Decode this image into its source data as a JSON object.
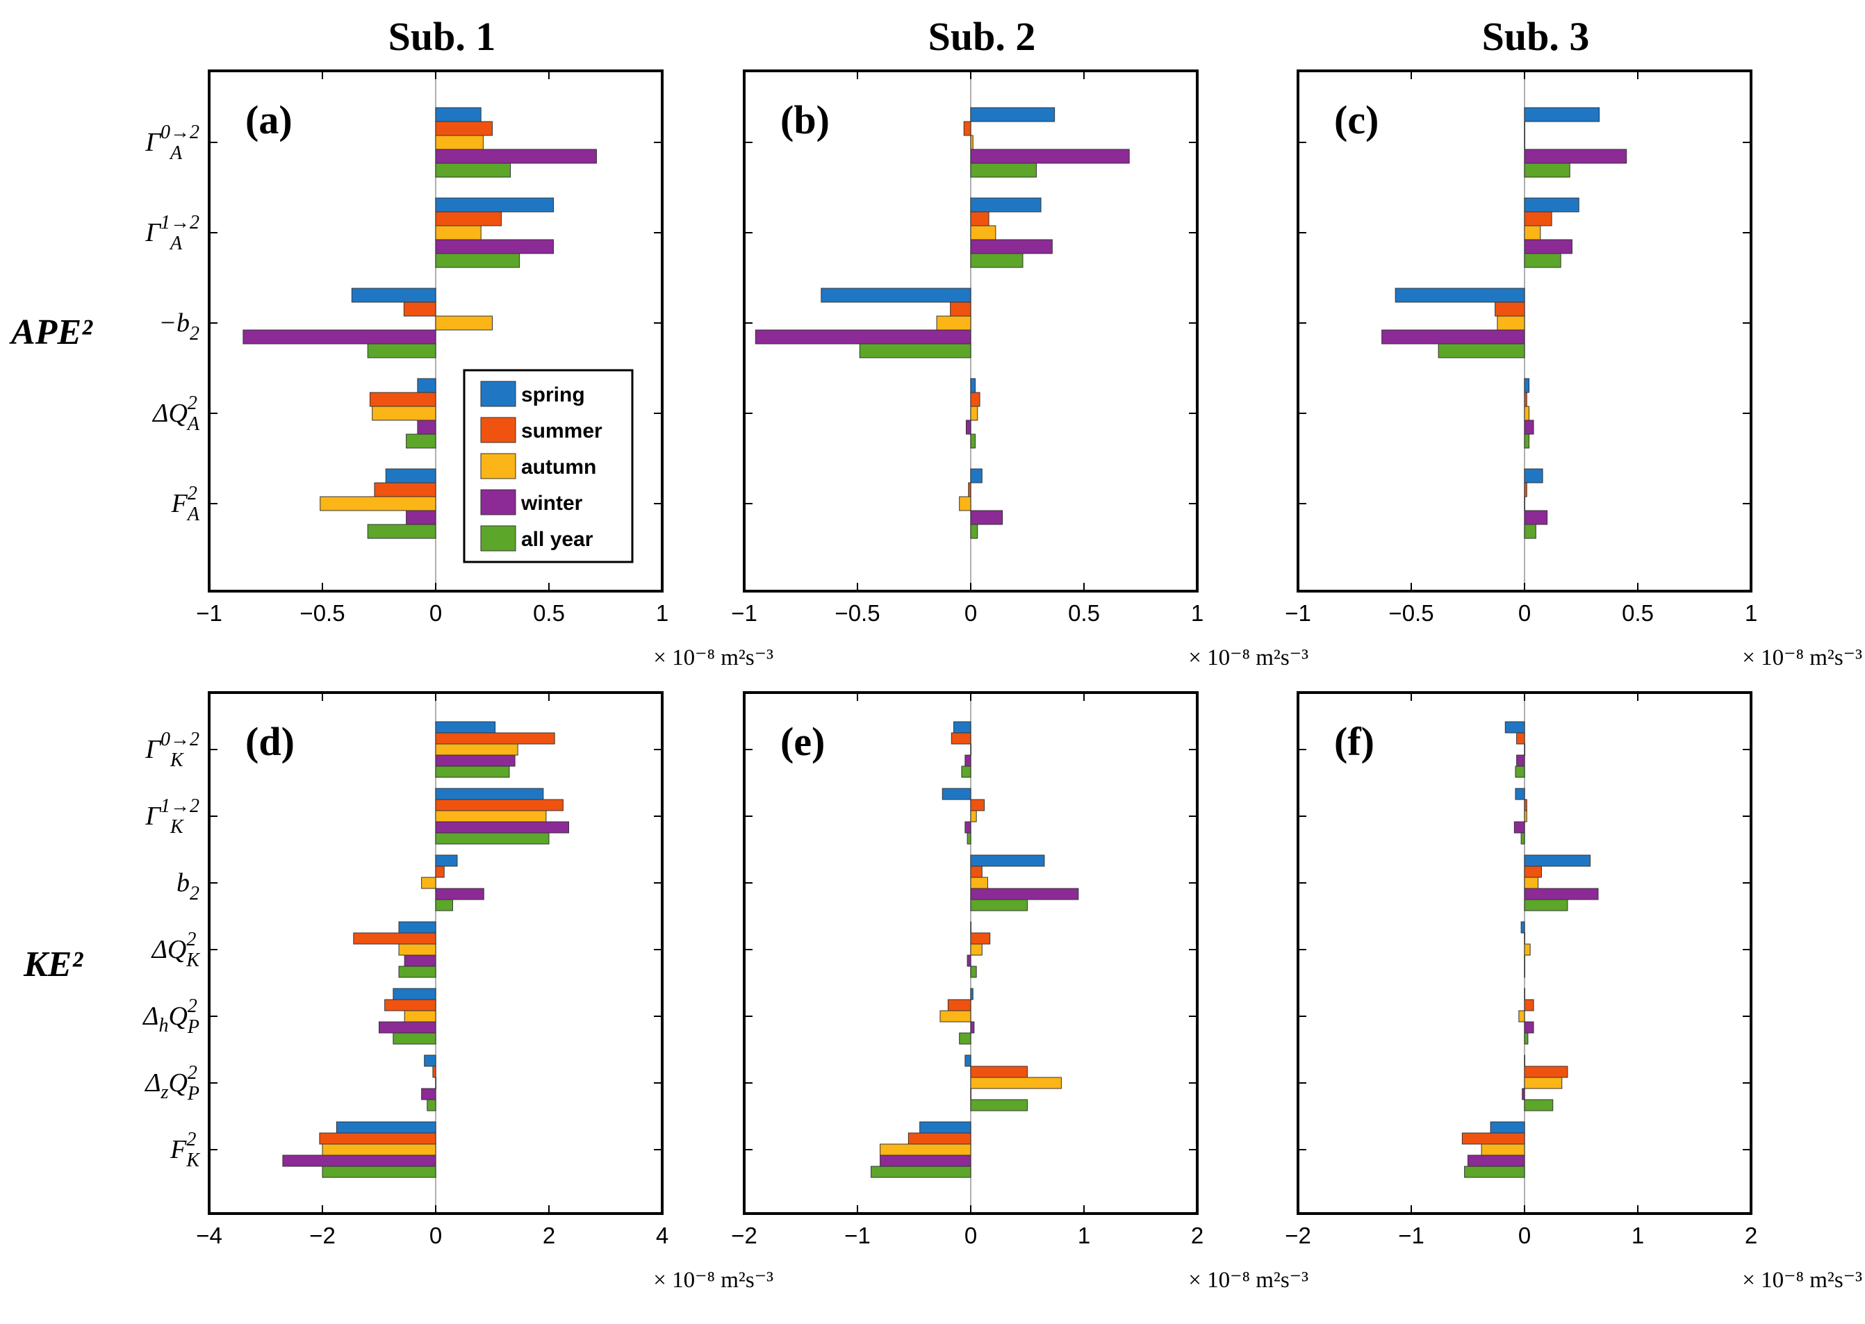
{
  "figure": {
    "column_titles": [
      "Sub. 1",
      "Sub. 2",
      "Sub. 3"
    ],
    "group_labels": {
      "ape": "APE²",
      "ke": "KE²"
    },
    "unit_label": "× 10⁻⁸ m²s⁻³"
  },
  "legend": {
    "items": [
      {
        "name": "spring",
        "color": "#1f77c4"
      },
      {
        "name": "summer",
        "color": "#f0530f"
      },
      {
        "name": "autumn",
        "color": "#fbb516"
      },
      {
        "name": "winter",
        "color": "#8c2a96"
      },
      {
        "name": "all year",
        "color": "#5ca62a"
      }
    ]
  },
  "chart_data": [
    {
      "type": "bar",
      "orientation": "horizontal",
      "panel_label": "(a)",
      "column_title": "Sub. 1",
      "categories": [
        {
          "base": "Γ",
          "sub": "A",
          "sup": "0→2"
        },
        {
          "base": "Γ",
          "sub": "A",
          "sup": "1→2"
        },
        {
          "base": "−b",
          "sub": "2",
          "sup": ""
        },
        {
          "base": "ΔQ",
          "sub": "A",
          "sup": "2"
        },
        {
          "base": "F",
          "sub": "A",
          "sup": "2"
        }
      ],
      "xlim": [
        -1,
        1
      ],
      "xticks": [
        -1,
        -0.5,
        0,
        0.5,
        1
      ],
      "xtick_labels": [
        "−1",
        "−0.5",
        "0",
        "0.5",
        "1"
      ],
      "xlabel": "× 10⁻⁸ m²s⁻³",
      "series": [
        {
          "name": "spring",
          "values": [
            0.2,
            0.52,
            -0.37,
            -0.08,
            -0.22
          ]
        },
        {
          "name": "summer",
          "values": [
            0.25,
            0.29,
            -0.14,
            -0.29,
            -0.27
          ]
        },
        {
          "name": "autumn",
          "values": [
            0.21,
            0.2,
            0.25,
            -0.28,
            -0.51
          ]
        },
        {
          "name": "winter",
          "values": [
            0.71,
            0.52,
            -0.85,
            -0.08,
            -0.13
          ]
        },
        {
          "name": "all year",
          "values": [
            0.33,
            0.37,
            -0.3,
            -0.13,
            -0.3
          ]
        }
      ]
    },
    {
      "type": "bar",
      "orientation": "horizontal",
      "panel_label": "(b)",
      "column_title": "Sub. 2",
      "categories": [
        {
          "base": "Γ",
          "sub": "A",
          "sup": "0→2"
        },
        {
          "base": "Γ",
          "sub": "A",
          "sup": "1→2"
        },
        {
          "base": "−b",
          "sub": "2",
          "sup": ""
        },
        {
          "base": "ΔQ",
          "sub": "A",
          "sup": "2"
        },
        {
          "base": "F",
          "sub": "A",
          "sup": "2"
        }
      ],
      "xlim": [
        -1,
        1
      ],
      "xticks": [
        -1,
        -0.5,
        0,
        0.5,
        1
      ],
      "xtick_labels": [
        "−1",
        "−0.5",
        "0",
        "0.5",
        "1"
      ],
      "xlabel": "× 10⁻⁸ m²s⁻³",
      "series": [
        {
          "name": "spring",
          "values": [
            0.37,
            0.31,
            -0.66,
            0.02,
            0.05
          ]
        },
        {
          "name": "summer",
          "values": [
            -0.03,
            0.08,
            -0.09,
            0.04,
            -0.01
          ]
        },
        {
          "name": "autumn",
          "values": [
            0.01,
            0.11,
            -0.15,
            0.03,
            -0.05
          ]
        },
        {
          "name": "winter",
          "values": [
            0.7,
            0.36,
            -0.95,
            -0.02,
            0.14
          ]
        },
        {
          "name": "all year",
          "values": [
            0.29,
            0.23,
            -0.49,
            0.02,
            0.03
          ]
        }
      ]
    },
    {
      "type": "bar",
      "orientation": "horizontal",
      "panel_label": "(c)",
      "column_title": "Sub. 3",
      "categories": [
        {
          "base": "Γ",
          "sub": "A",
          "sup": "0→2"
        },
        {
          "base": "Γ",
          "sub": "A",
          "sup": "1→2"
        },
        {
          "base": "−b",
          "sub": "2",
          "sup": ""
        },
        {
          "base": "ΔQ",
          "sub": "A",
          "sup": "2"
        },
        {
          "base": "F",
          "sub": "A",
          "sup": "2"
        }
      ],
      "xlim": [
        -1,
        1
      ],
      "xticks": [
        -1,
        -0.5,
        0,
        0.5,
        1
      ],
      "xtick_labels": [
        "−1",
        "−0.5",
        "0",
        "0.5",
        "1"
      ],
      "xlabel": "× 10⁻⁸ m²s⁻³",
      "series": [
        {
          "name": "spring",
          "values": [
            0.33,
            0.24,
            -0.57,
            0.02,
            0.08
          ]
        },
        {
          "name": "summer",
          "values": [
            0.0,
            0.12,
            -0.13,
            0.01,
            0.01
          ]
        },
        {
          "name": "autumn",
          "values": [
            0.0,
            0.07,
            -0.12,
            0.02,
            0.0
          ]
        },
        {
          "name": "winter",
          "values": [
            0.45,
            0.21,
            -0.63,
            0.04,
            0.1
          ]
        },
        {
          "name": "all year",
          "values": [
            0.2,
            0.16,
            -0.38,
            0.02,
            0.05
          ]
        }
      ]
    },
    {
      "type": "bar",
      "orientation": "horizontal",
      "panel_label": "(d)",
      "column_title": "Sub. 1",
      "categories": [
        {
          "base": "Γ",
          "sub": "K",
          "sup": "0→2"
        },
        {
          "base": "Γ",
          "sub": "K",
          "sup": "1→2"
        },
        {
          "base": "b",
          "sub": "2",
          "sup": ""
        },
        {
          "base": "ΔQ",
          "sub": "K",
          "sup": "2"
        },
        {
          "base": "ΔₕQ",
          "sub": "P",
          "sup": "2"
        },
        {
          "base": "Δ_zQ",
          "sub": "P",
          "sup": "2"
        },
        {
          "base": "F",
          "sub": "K",
          "sup": "2"
        }
      ],
      "xlim": [
        -4,
        4
      ],
      "xticks": [
        -4,
        -2,
        0,
        2,
        4
      ],
      "xtick_labels": [
        "−4",
        "−2",
        "0",
        "2",
        "4"
      ],
      "xlabel": "× 10⁻⁸ m²s⁻³",
      "series": [
        {
          "name": "spring",
          "values": [
            1.05,
            1.9,
            0.38,
            -0.65,
            -0.75,
            -0.2,
            -1.75
          ]
        },
        {
          "name": "summer",
          "values": [
            2.1,
            2.25,
            0.15,
            -1.45,
            -0.9,
            -0.05,
            -2.05
          ]
        },
        {
          "name": "autumn",
          "values": [
            1.45,
            1.95,
            -0.25,
            -0.65,
            -0.55,
            0.0,
            -2.0
          ]
        },
        {
          "name": "winter",
          "values": [
            1.4,
            2.35,
            0.85,
            -0.55,
            -1.0,
            -0.25,
            -2.7
          ]
        },
        {
          "name": "all year",
          "values": [
            1.3,
            2.0,
            0.3,
            -0.65,
            -0.75,
            -0.15,
            -2.0
          ]
        }
      ]
    },
    {
      "type": "bar",
      "orientation": "horizontal",
      "panel_label": "(e)",
      "column_title": "Sub. 2",
      "categories": [
        {
          "base": "Γ",
          "sub": "K",
          "sup": "0→2"
        },
        {
          "base": "Γ",
          "sub": "K",
          "sup": "1→2"
        },
        {
          "base": "b",
          "sub": "2",
          "sup": ""
        },
        {
          "base": "ΔQ",
          "sub": "K",
          "sup": "2"
        },
        {
          "base": "ΔₕQ",
          "sub": "P",
          "sup": "2"
        },
        {
          "base": "Δ_zQ",
          "sub": "P",
          "sup": "2"
        },
        {
          "base": "F",
          "sub": "K",
          "sup": "2"
        }
      ],
      "xlim": [
        -2,
        2
      ],
      "xticks": [
        -2,
        -1,
        0,
        1,
        2
      ],
      "xtick_labels": [
        "−2",
        "−1",
        "0",
        "1",
        "2"
      ],
      "xlabel": "× 10⁻⁸ m²s⁻³",
      "series": [
        {
          "name": "spring",
          "values": [
            -0.15,
            -0.25,
            0.65,
            0.0,
            0.02,
            -0.05,
            -0.45
          ]
        },
        {
          "name": "summer",
          "values": [
            -0.17,
            0.12,
            0.1,
            0.17,
            -0.2,
            0.5,
            -0.55
          ]
        },
        {
          "name": "autumn",
          "values": [
            0.0,
            0.05,
            0.15,
            0.1,
            -0.27,
            0.8,
            -0.8
          ]
        },
        {
          "name": "winter",
          "values": [
            -0.05,
            -0.05,
            0.95,
            -0.03,
            0.03,
            0.0,
            -0.8
          ]
        },
        {
          "name": "all year",
          "values": [
            -0.08,
            -0.03,
            0.5,
            0.05,
            -0.1,
            0.5,
            -0.88
          ]
        }
      ]
    },
    {
      "type": "bar",
      "orientation": "horizontal",
      "panel_label": "(f)",
      "column_title": "Sub. 3",
      "categories": [
        {
          "base": "Γ",
          "sub": "K",
          "sup": "0→2"
        },
        {
          "base": "Γ",
          "sub": "K",
          "sup": "1→2"
        },
        {
          "base": "b",
          "sub": "2",
          "sup": ""
        },
        {
          "base": "ΔQ",
          "sub": "K",
          "sup": "2"
        },
        {
          "base": "ΔₕQ",
          "sub": "P",
          "sup": "2"
        },
        {
          "base": "Δ_zQ",
          "sub": "P",
          "sup": "2"
        },
        {
          "base": "F",
          "sub": "K",
          "sup": "2"
        }
      ],
      "xlim": [
        -2,
        2
      ],
      "xticks": [
        -2,
        -1,
        0,
        1,
        2
      ],
      "xtick_labels": [
        "−2",
        "−1",
        "0",
        "1",
        "2"
      ],
      "xlabel": "× 10⁻⁸ m²s⁻³",
      "series": [
        {
          "name": "spring",
          "values": [
            -0.17,
            -0.08,
            0.58,
            -0.03,
            0.0,
            0.0,
            -0.3
          ]
        },
        {
          "name": "summer",
          "values": [
            -0.07,
            0.02,
            0.15,
            0.0,
            0.08,
            0.38,
            -0.55
          ]
        },
        {
          "name": "autumn",
          "values": [
            0.0,
            0.02,
            0.12,
            0.05,
            -0.05,
            0.33,
            -0.38
          ]
        },
        {
          "name": "winter",
          "values": [
            -0.07,
            -0.09,
            0.65,
            0.0,
            0.08,
            -0.02,
            -0.5
          ]
        },
        {
          "name": "all year",
          "values": [
            -0.08,
            -0.03,
            0.38,
            0.0,
            0.03,
            0.25,
            -0.53
          ]
        }
      ]
    }
  ]
}
